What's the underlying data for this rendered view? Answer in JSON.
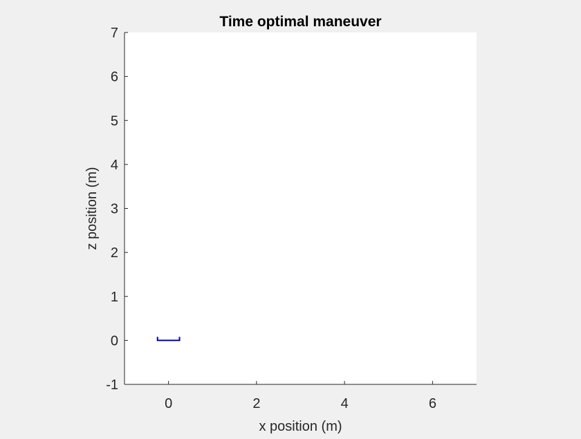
{
  "chart_data": {
    "type": "line",
    "title": "Time optimal maneuver",
    "xlabel": "x position (m)",
    "ylabel": "z position (m)",
    "xlim": [
      -1,
      7
    ],
    "ylim": [
      -1,
      7
    ],
    "xticks": [
      0,
      2,
      4,
      6
    ],
    "yticks": [
      -1,
      0,
      1,
      2,
      3,
      4,
      5,
      6,
      7
    ],
    "xtick_labels": [
      "0",
      "2",
      "4",
      "6"
    ],
    "ytick_labels": [
      "-1",
      "0",
      "1",
      "2",
      "3",
      "4",
      "5",
      "6",
      "7"
    ],
    "grid": false,
    "legend": "none",
    "series": [
      {
        "color": "#00008b",
        "x": [
          -0.25,
          -0.25,
          0.25,
          0.25
        ],
        "y": [
          0.08,
          0.0,
          0.0,
          0.08
        ]
      }
    ]
  },
  "colors": {
    "figure_background": "#f0f0f0",
    "axes_background": "#ffffff",
    "axis_color": "#262626"
  }
}
